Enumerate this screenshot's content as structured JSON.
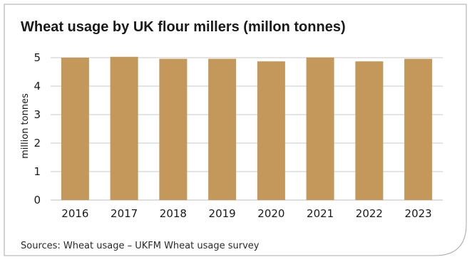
{
  "colors": {
    "bar": "#C4985A",
    "grid": "#C9C9C9",
    "border": "#A8A8A8",
    "text": "#1A1A1A"
  },
  "chart_data": {
    "type": "bar",
    "title": "Wheat usage by UK flour millers (millon tonnes)",
    "ylabel": "million tonnes",
    "xlabel": "",
    "categories": [
      "2016",
      "2017",
      "2018",
      "2019",
      "2020",
      "2021",
      "2022",
      "2023"
    ],
    "values": [
      5.0,
      5.03,
      4.96,
      4.96,
      4.87,
      5.01,
      4.87,
      4.96
    ],
    "ylim": [
      0,
      5
    ],
    "yticks": [
      "0",
      "1",
      "2",
      "3",
      "4",
      "5"
    ],
    "grid": true,
    "source": "Sources: Wheat usage – UKFM Wheat usage survey"
  }
}
